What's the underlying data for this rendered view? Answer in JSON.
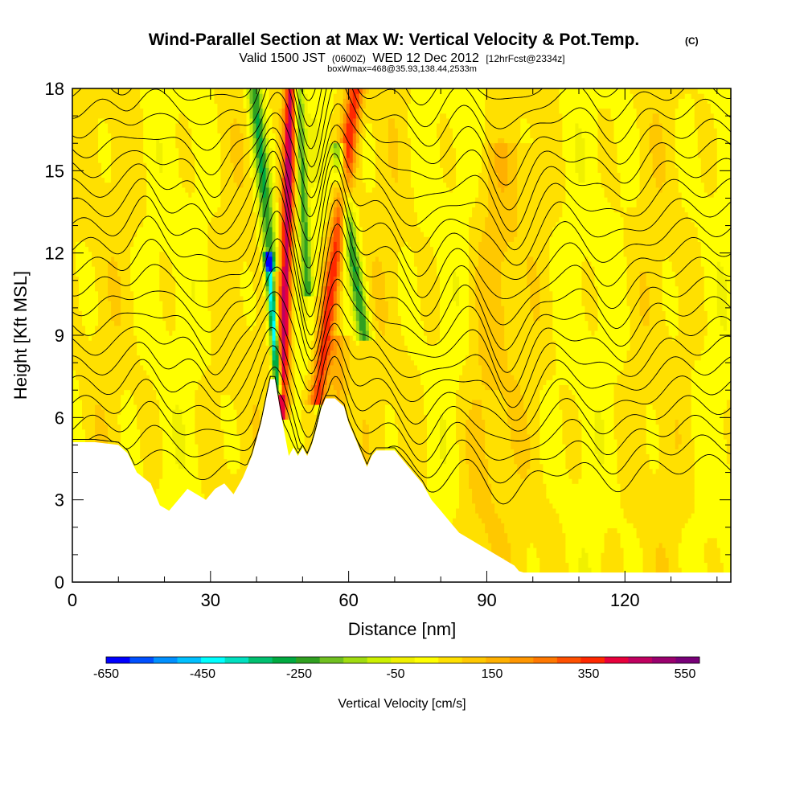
{
  "chart_data": {
    "type": "heatmap",
    "title": "Wind-Parallel Section at Max W: Vertical Velocity & Pot.Temp.",
    "title_mark": "(C)",
    "subtitle_parts": [
      "Valid 1500 JST",
      "(0600Z)",
      "WED 12 Dec 2012",
      "[12hrFcst@2334z]"
    ],
    "subtitle2": "boxWmax=468@35.93,138.44,2533m",
    "xlabel": "Distance [nm]",
    "ylabel": "Height [Kft MSL]",
    "xlim": [
      0,
      143
    ],
    "ylim": [
      0,
      18
    ],
    "x_ticks": [
      0,
      30,
      60,
      90,
      120
    ],
    "y_ticks": [
      0,
      3,
      6,
      9,
      12,
      15,
      18
    ],
    "terrain": {
      "x": [
        0,
        5,
        10,
        12,
        14,
        17,
        19,
        21,
        23,
        25,
        27,
        29,
        31,
        33,
        35,
        37,
        39,
        41,
        42,
        43,
        44,
        45,
        46,
        47,
        48,
        49,
        50,
        51,
        52,
        53,
        54,
        55,
        56,
        57,
        59,
        60,
        61,
        62,
        63,
        64,
        65,
        66,
        68,
        70,
        72,
        74,
        76,
        78,
        80,
        82,
        84,
        86,
        88,
        90,
        92,
        94,
        96,
        97,
        98,
        100,
        105,
        110,
        115,
        120,
        125,
        130,
        135,
        140,
        143
      ],
      "height_kft": [
        5.1,
        5.1,
        5.0,
        4.7,
        4.0,
        3.6,
        2.8,
        2.6,
        3.0,
        3.4,
        3.2,
        3.0,
        3.4,
        3.6,
        3.2,
        3.8,
        4.6,
        5.8,
        6.6,
        7.4,
        7.4,
        6.4,
        5.5,
        4.6,
        4.9,
        4.6,
        4.9,
        4.6,
        5.0,
        5.6,
        6.3,
        6.7,
        6.7,
        6.7,
        6.4,
        5.8,
        5.4,
        5.0,
        4.6,
        4.2,
        4.6,
        4.8,
        4.8,
        4.8,
        4.4,
        4.0,
        3.6,
        3.0,
        2.6,
        2.2,
        1.8,
        1.6,
        1.4,
        1.2,
        1.0,
        0.8,
        0.6,
        0.4,
        0.35,
        0.35,
        0.35,
        0.35,
        0.35,
        0.35,
        0.35,
        0.35,
        0.35,
        0.35,
        0.35
      ]
    },
    "updrafts": [
      {
        "x_base": 45.5,
        "y_base": 6.5,
        "x_top": 47.5,
        "y_top": 18,
        "half_width_nm": 1.4,
        "w_cms": 420
      },
      {
        "x_base": 53.5,
        "y_base": 7.0,
        "x_top": 61.5,
        "y_top": 18,
        "half_width_nm": 1.8,
        "w_cms": 320
      },
      {
        "x_base": 57,
        "y_base": 3.5,
        "x_top": 58,
        "y_top": 9,
        "half_width_nm": 2.2,
        "w_cms": 130
      },
      {
        "x_base": 88,
        "y_base": 1.5,
        "x_top": 93,
        "y_top": 16,
        "half_width_nm": 5,
        "w_cms": 60
      }
    ],
    "downdrafts": [
      {
        "x_base": 44.5,
        "y_base": 7.5,
        "x_top": 42.5,
        "y_top": 12,
        "half_width_nm": 0.9,
        "w_cms": -520
      },
      {
        "x_base": 43.0,
        "y_base": 12,
        "x_top": 39.5,
        "y_top": 18,
        "half_width_nm": 1.6,
        "w_cms": -300
      },
      {
        "x_base": 51.0,
        "y_base": 11,
        "x_top": 49.0,
        "y_top": 18,
        "half_width_nm": 1.1,
        "w_cms": -250
      },
      {
        "x_base": 63.0,
        "y_base": 9.5,
        "x_top": 57.5,
        "y_top": 16,
        "half_width_nm": 1.5,
        "w_cms": -280
      }
    ],
    "isentropes_note": "potential temperature contours, wave pattern over terrain",
    "colorbar": {
      "title": "Vertical Velocity [cm/s]",
      "tick_labels": [
        "-650",
        "-450",
        "-250",
        "-50",
        "150",
        "350",
        "550"
      ],
      "tick_values": [
        -650,
        -450,
        -250,
        -50,
        150,
        350,
        550
      ],
      "range": [
        -650,
        580
      ],
      "colors": [
        "#0000ff",
        "#0050ff",
        "#0090ff",
        "#00c0ff",
        "#00ffff",
        "#00e0c0",
        "#00c070",
        "#00aa40",
        "#30a020",
        "#70c020",
        "#a0dc10",
        "#ccf000",
        "#f0f000",
        "#ffff00",
        "#ffe000",
        "#ffc800",
        "#ffb000",
        "#ff9600",
        "#ff7800",
        "#ff5000",
        "#ff2800",
        "#e8003c",
        "#c00060",
        "#9a006e",
        "#780078"
      ]
    }
  }
}
